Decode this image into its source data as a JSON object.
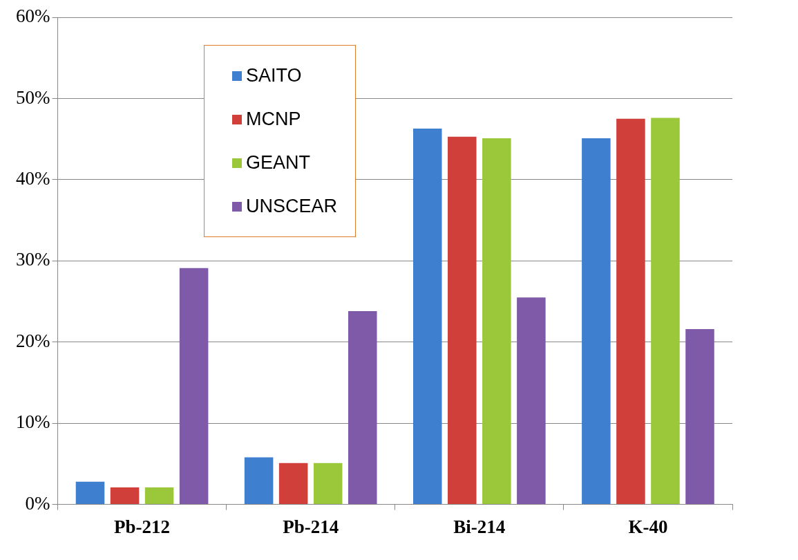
{
  "chart_data": {
    "type": "bar",
    "categories": [
      "Pb-212",
      "Pb-214",
      "Bi-214",
      "K-40"
    ],
    "series": [
      {
        "name": "SAITO",
        "color": "#3f7fd0",
        "values": [
          2.8,
          5.8,
          46.3,
          45.1
        ]
      },
      {
        "name": "MCNP",
        "color": "#d03f3a",
        "values": [
          2.1,
          5.1,
          45.3,
          47.5
        ]
      },
      {
        "name": "GEANT",
        "color": "#9bc83a",
        "values": [
          2.1,
          5.1,
          45.1,
          47.6
        ]
      },
      {
        "name": "UNSCEAR",
        "color": "#7f5aa8",
        "values": [
          29.1,
          23.8,
          25.5,
          21.6
        ]
      }
    ],
    "ylim": [
      0,
      60
    ],
    "yticks": [
      {
        "value": 0,
        "label": "0%"
      },
      {
        "value": 10,
        "label": "10%"
      },
      {
        "value": 20,
        "label": "20%"
      },
      {
        "value": 30,
        "label": "30%"
      },
      {
        "value": 40,
        "label": "40%"
      },
      {
        "value": 50,
        "label": "50%"
      },
      {
        "value": 60,
        "label": "60%"
      }
    ],
    "grid": "y",
    "legend": "top left"
  }
}
